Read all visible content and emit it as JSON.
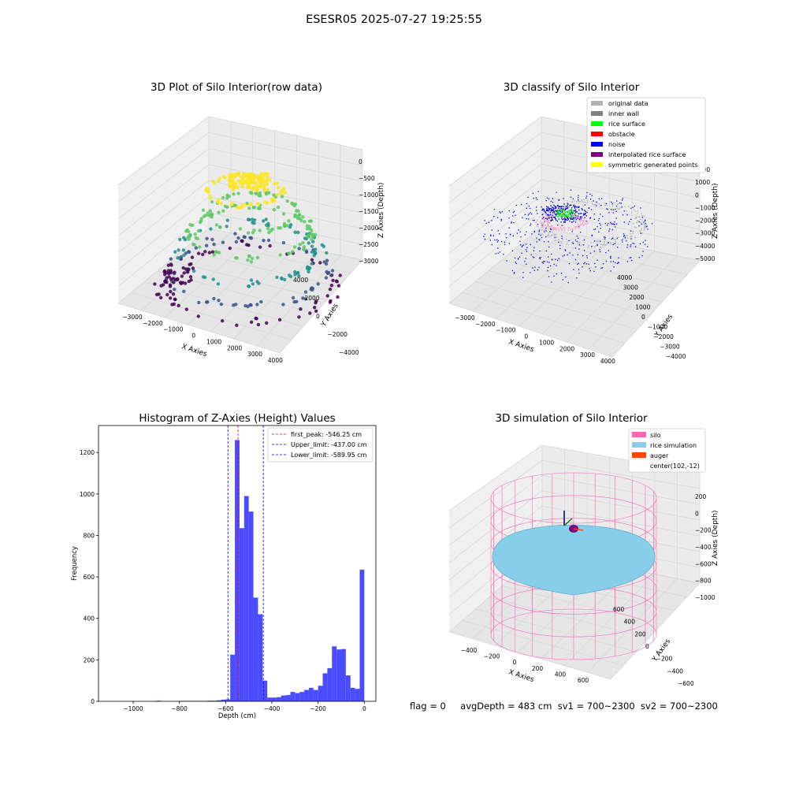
{
  "figure_title": "ESESR05 2025-07-27 19:25:55",
  "status_line": {
    "flag": "flag = 0",
    "avg_depth": "avgDepth = 483 cm",
    "sv1": "sv1 = 700~2300",
    "sv2": "sv2 = 700~2300"
  },
  "chart_data": [
    {
      "type": "scatter",
      "title": "3D Plot of Silo Interior(row data)",
      "xlabel": "X Axies",
      "ylabel": "Y Axies",
      "zlabel": "Z Axies (Depth)",
      "x_ticks": [
        "−3000",
        "−2000",
        "−1000",
        "0",
        "1000",
        "2000",
        "3000",
        "4000"
      ],
      "y_ticks": [
        "−4000",
        "−2000",
        "0",
        "2000",
        "4000"
      ],
      "z_ticks": [
        "0",
        "−500",
        "−1000",
        "−1500",
        "−2000",
        "−2500",
        "−3000"
      ],
      "colormap": [
        "#440154",
        "#3b528b",
        "#21918c",
        "#5ec962",
        "#fde725"
      ]
    },
    {
      "type": "scatter",
      "title": "3D classify of Silo Interior",
      "xlabel": "X Axies",
      "ylabel": "Y Axies",
      "zlabel": "Z Axies (Depth)",
      "x_ticks": [
        "−3000",
        "−2000",
        "−1000",
        "0",
        "1000",
        "2000",
        "3000",
        "4000"
      ],
      "y_ticks": [
        "−4000",
        "−3000",
        "−2000",
        "−1000",
        "0",
        "1000",
        "2000",
        "3000",
        "4000"
      ],
      "z_ticks": [
        "2000",
        "1000",
        "0",
        "−1000",
        "−2000",
        "−3000",
        "−4000",
        "−5000"
      ],
      "legend": [
        {
          "label": "original data",
          "color": "#b3b3b3"
        },
        {
          "label": "inner wall",
          "color": "#808080"
        },
        {
          "label": "rice surface",
          "color": "#00ff00"
        },
        {
          "label": "obstacle",
          "color": "#ff0000"
        },
        {
          "label": "noise",
          "color": "#0000ff"
        },
        {
          "label": "interpolated rice surface",
          "color": "#800080"
        },
        {
          "label": "symmetric generated points",
          "color": "#ffff00"
        }
      ],
      "legend_position": "top-right"
    },
    {
      "type": "bar",
      "title": "Histogram of Z-Axies (Height) Values",
      "xlabel": "Depth (cm)",
      "ylabel": "Frequency",
      "xlim": [
        -1150,
        50
      ],
      "ylim": [
        0,
        1330
      ],
      "x_ticks": [
        {
          "v": -1000,
          "t": "−1000"
        },
        {
          "v": -800,
          "t": "−800"
        },
        {
          "v": -600,
          "t": "−600"
        },
        {
          "v": -400,
          "t": "−400"
        },
        {
          "v": -200,
          "t": "−200"
        },
        {
          "v": 0,
          "t": "0"
        }
      ],
      "y_ticks": [
        {
          "v": 0,
          "t": "0"
        },
        {
          "v": 200,
          "t": "200"
        },
        {
          "v": 400,
          "t": "400"
        },
        {
          "v": 600,
          "t": "600"
        },
        {
          "v": 800,
          "t": "800"
        },
        {
          "v": 1000,
          "t": "1000"
        },
        {
          "v": 1200,
          "t": "1200"
        }
      ],
      "bar_color": "#4b4bff",
      "bins": [
        {
          "x0": -900,
          "x1": -880,
          "count": 3
        },
        {
          "x0": -800,
          "x1": -780,
          "count": 2
        },
        {
          "x0": -780,
          "x1": -760,
          "count": 2
        },
        {
          "x0": -760,
          "x1": -740,
          "count": 2
        },
        {
          "x0": -740,
          "x1": -720,
          "count": 2
        },
        {
          "x0": -720,
          "x1": -700,
          "count": 2
        },
        {
          "x0": -700,
          "x1": -680,
          "count": 2
        },
        {
          "x0": -680,
          "x1": -660,
          "count": 3
        },
        {
          "x0": -660,
          "x1": -640,
          "count": 3
        },
        {
          "x0": -640,
          "x1": -620,
          "count": 5
        },
        {
          "x0": -620,
          "x1": -600,
          "count": 8
        },
        {
          "x0": -600,
          "x1": -580,
          "count": 10
        },
        {
          "x0": -580,
          "x1": -560,
          "count": 225
        },
        {
          "x0": -560,
          "x1": -540,
          "count": 1260
        },
        {
          "x0": -540,
          "x1": -520,
          "count": 835
        },
        {
          "x0": -520,
          "x1": -500,
          "count": 990
        },
        {
          "x0": -500,
          "x1": -480,
          "count": 915
        },
        {
          "x0": -480,
          "x1": -460,
          "count": 500
        },
        {
          "x0": -460,
          "x1": -440,
          "count": 420
        },
        {
          "x0": -440,
          "x1": -420,
          "count": 100
        },
        {
          "x0": -420,
          "x1": -400,
          "count": 18
        },
        {
          "x0": -400,
          "x1": -380,
          "count": 18
        },
        {
          "x0": -380,
          "x1": -360,
          "count": 20
        },
        {
          "x0": -360,
          "x1": -340,
          "count": 28
        },
        {
          "x0": -340,
          "x1": -320,
          "count": 30
        },
        {
          "x0": -320,
          "x1": -300,
          "count": 45
        },
        {
          "x0": -300,
          "x1": -280,
          "count": 40
        },
        {
          "x0": -280,
          "x1": -260,
          "count": 45
        },
        {
          "x0": -260,
          "x1": -240,
          "count": 55
        },
        {
          "x0": -240,
          "x1": -220,
          "count": 65
        },
        {
          "x0": -220,
          "x1": -200,
          "count": 55
        },
        {
          "x0": -200,
          "x1": -180,
          "count": 75
        },
        {
          "x0": -180,
          "x1": -160,
          "count": 135
        },
        {
          "x0": -160,
          "x1": -140,
          "count": 160
        },
        {
          "x0": -140,
          "x1": -120,
          "count": 265
        },
        {
          "x0": -120,
          "x1": -100,
          "count": 250
        },
        {
          "x0": -100,
          "x1": -80,
          "count": 252
        },
        {
          "x0": -80,
          "x1": -60,
          "count": 125
        },
        {
          "x0": -60,
          "x1": -40,
          "count": 65
        },
        {
          "x0": -40,
          "x1": -20,
          "count": 60
        },
        {
          "x0": -20,
          "x1": 0,
          "count": 635
        }
      ],
      "lines": [
        {
          "label": "first_peak: -546.25 cm",
          "value": -546.25,
          "color": "#ff0000"
        },
        {
          "label": "Upper_limit: -437.00 cm",
          "value": -437.0,
          "color": "#0000ff"
        },
        {
          "label": "Lower_limit: -589.95 cm",
          "value": -589.95,
          "color": "#0000ff"
        }
      ],
      "legend_position": "top-right"
    },
    {
      "type": "surface",
      "title": "3D simulation of Silo Interior",
      "xlabel": "X Axies",
      "ylabel": "Y Axies",
      "zlabel": "Z Axies (Depth)",
      "x_ticks": [
        "−400",
        "−200",
        "0",
        "200",
        "400",
        "600"
      ],
      "y_ticks": [
        "−600",
        "−400",
        "−200",
        "0",
        "200",
        "400",
        "600"
      ],
      "z_ticks": [
        "200",
        "0",
        "−200",
        "−400",
        "−600",
        "−800",
        "−1000"
      ],
      "legend": [
        {
          "label": "silo",
          "color": "#ff69b4"
        },
        {
          "label": "rice simulation",
          "color": "#87ceeb"
        },
        {
          "label": "auger",
          "color": "#ff4500"
        },
        {
          "label": "center(102,-12)",
          "color": ""
        }
      ],
      "legend_position": "top-right"
    }
  ]
}
